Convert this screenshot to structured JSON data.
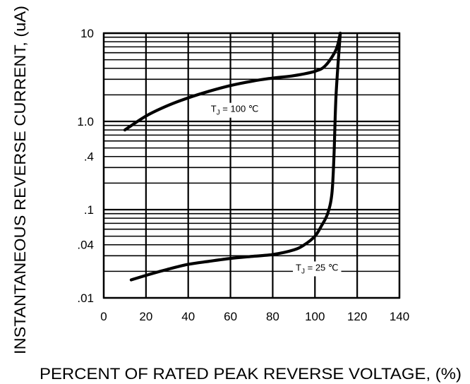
{
  "chart_data": {
    "type": "line",
    "xlabel": "PERCENT OF RATED PEAK REVERSE VOLTAGE, (%)",
    "ylabel": "INSTANTANEOUS REVERSE CURRENT, (uA)",
    "xlim": [
      0,
      140
    ],
    "ylim": [
      0.01,
      10
    ],
    "y_scale": "log",
    "grid": true,
    "x_ticks": [
      0,
      20,
      40,
      60,
      80,
      100,
      120,
      140
    ],
    "x_tick_labels": [
      "0",
      "20",
      "40",
      "60",
      "80",
      "100",
      "120",
      "140"
    ],
    "y_ticks": [
      0.01,
      0.04,
      0.1,
      0.4,
      1.0,
      10
    ],
    "y_tick_labels": [
      ".01",
      ".04",
      ".1",
      ".4",
      "1.0",
      "10"
    ],
    "series": [
      {
        "x": [
          10,
          20,
          30,
          40,
          50,
          60,
          70,
          80,
          90,
          100,
          105,
          110,
          112
        ],
        "y": [
          0.8,
          1.15,
          1.5,
          1.85,
          2.2,
          2.55,
          2.85,
          3.1,
          3.3,
          3.7,
          4.3,
          6.5,
          10
        ]
      },
      {
        "x": [
          13,
          20,
          30,
          40,
          50,
          60,
          70,
          80,
          90,
          95,
          100,
          103,
          106,
          108,
          109,
          110,
          112
        ],
        "y": [
          0.016,
          0.018,
          0.021,
          0.024,
          0.026,
          0.028,
          0.0295,
          0.031,
          0.035,
          0.04,
          0.05,
          0.065,
          0.09,
          0.15,
          0.4,
          2.0,
          10
        ]
      }
    ],
    "annotations": [
      {
        "main": "T",
        "sub": "J",
        "rest": " = 100  ℃",
        "x": 62,
        "y": 1.35
      },
      {
        "main": "T",
        "sub": "J",
        "rest": " = 25  ℃",
        "x": 101,
        "y": 0.0215
      }
    ]
  }
}
